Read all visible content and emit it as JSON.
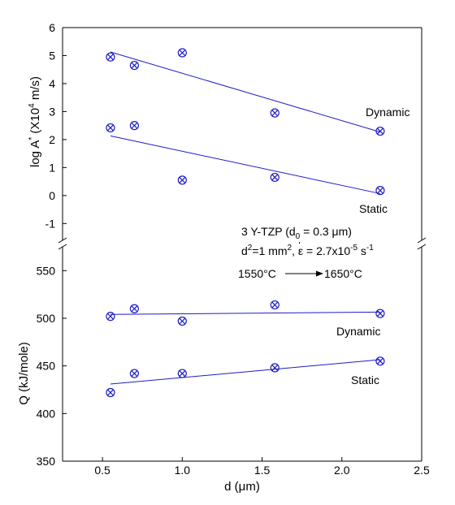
{
  "chart_data": {
    "type": "scatter",
    "xlabel": "d (μm)",
    "x_ticks": [
      "0.5",
      "1.0",
      "1.5",
      "2.0",
      "2.5"
    ],
    "xlim": [
      0.25,
      2.5
    ],
    "colors": {
      "series": "#1c1cc8",
      "axis": "#000000"
    },
    "panels": [
      {
        "name": "top",
        "ylabel_parts": {
          "main": "log A",
          "sup1": "*",
          "mid": " (X10",
          "sup2": "4",
          "tail": " m/s)"
        },
        "ylim": [
          -1.6,
          6
        ],
        "y_ticks": [
          "-1",
          "0",
          "1",
          "2",
          "3",
          "4",
          "5",
          "6"
        ],
        "series": [
          {
            "name": "Dynamic",
            "x": [
              0.55,
              0.7,
              1.0,
              1.58,
              2.24
            ],
            "y": [
              4.95,
              4.65,
              5.1,
              2.95,
              2.3
            ],
            "fit": {
              "x": [
                0.55,
                2.24
              ],
              "y": [
                5.13,
                2.27
              ]
            }
          },
          {
            "name": "Static",
            "x": [
              0.55,
              0.7,
              1.0,
              1.58,
              2.24
            ],
            "y": [
              2.42,
              2.5,
              0.55,
              0.65,
              0.18
            ],
            "fit": {
              "x": [
                0.55,
                2.24
              ],
              "y": [
                2.13,
                0.07
              ]
            }
          }
        ]
      },
      {
        "name": "bottom",
        "ylabel": "Q (kJ/mole)",
        "ylim": [
          350,
          575
        ],
        "y_ticks": [
          "350",
          "400",
          "450",
          "500",
          "550"
        ],
        "series": [
          {
            "name": "Dynamic",
            "x": [
              0.55,
              0.7,
              1.0,
              1.58,
              2.24
            ],
            "y": [
              502,
              510,
              497,
              514,
              505
            ],
            "fit": {
              "x": [
                0.55,
                2.24
              ],
              "y": [
                504,
                506.5
              ]
            }
          },
          {
            "name": "Static",
            "x": [
              0.55,
              0.7,
              1.0,
              1.58,
              2.24
            ],
            "y": [
              422,
              442,
              442,
              448,
              455
            ],
            "fit": {
              "x": [
                0.55,
                2.24
              ],
              "y": [
                431,
                456.5
              ]
            }
          }
        ]
      }
    ],
    "annotations": {
      "material": {
        "pre": "3 Y-TZP (d",
        "sub": "0",
        "post": " = 0.3 μm)"
      },
      "conditions": {
        "a": "d",
        "a_sup": "2",
        "b": "=1 mm",
        "b_sup": "2",
        "c": ", ε = 2.7x10",
        "c_sup": "-5",
        "d": " s",
        "d_sup": "-1"
      },
      "temp_start": "1550°C",
      "temp_end": "1650°C"
    }
  }
}
